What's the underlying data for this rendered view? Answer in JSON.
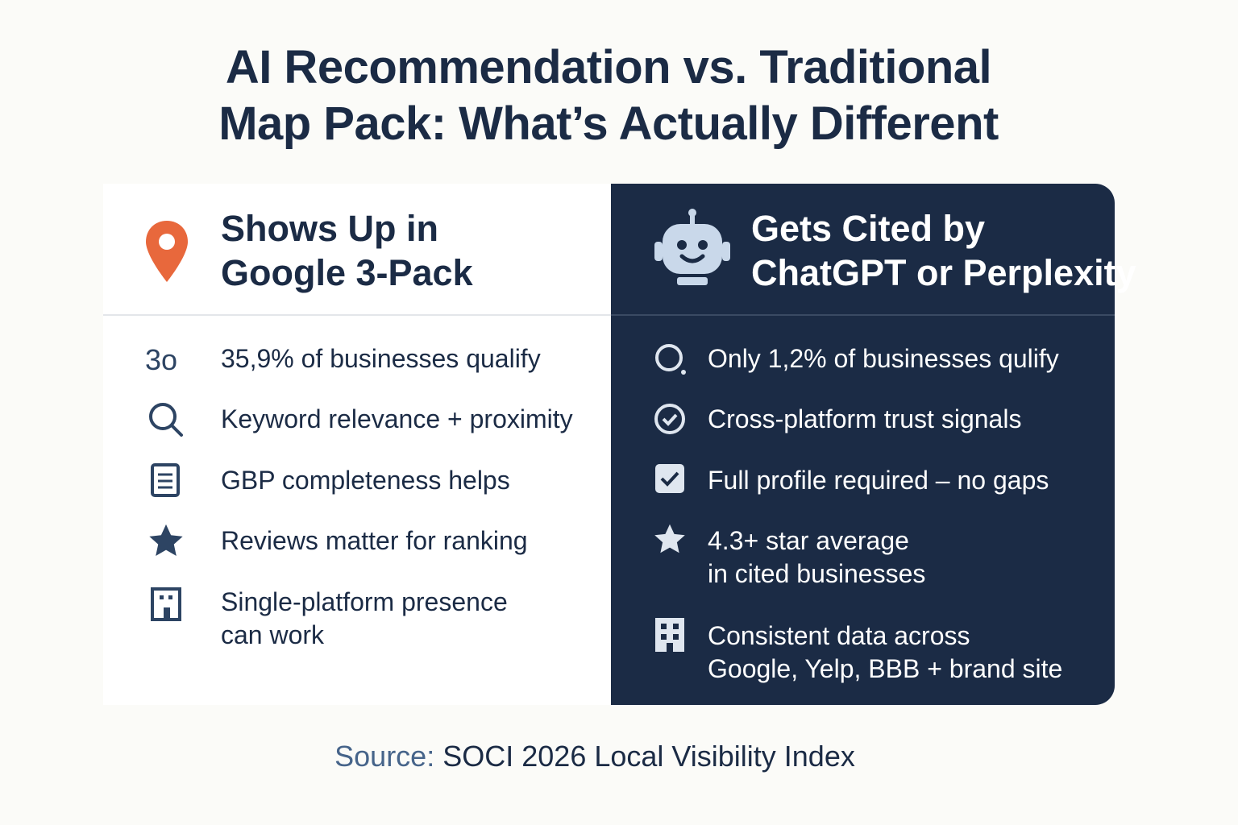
{
  "header": {
    "title": [
      "AI Recommendation vs. Traditional",
      "Map Pack: What’s Actually Different"
    ]
  },
  "left": {
    "heading": [
      "Shows Up in",
      "Google 3-Pack"
    ],
    "icon_text": "3o",
    "items": [
      {
        "lines": [
          "35,9% of businesses qualify"
        ]
      },
      {
        "lines": [
          "Keyword relevance + proximity"
        ]
      },
      {
        "lines": [
          "GBP completeness helps"
        ]
      },
      {
        "lines": [
          "Reviews matter for ranking"
        ]
      },
      {
        "lines": [
          "Single-platform presence",
          "can work"
        ]
      }
    ]
  },
  "right": {
    "heading": [
      "Gets Cited by",
      "ChatGPT or Perplexity"
    ],
    "items": [
      {
        "lines": [
          "Only 1,2% of businesses qulify"
        ]
      },
      {
        "lines": [
          "Cross-platform trust signals"
        ]
      },
      {
        "lines": [
          "Full profile required – no gaps"
        ]
      },
      {
        "lines": [
          "4.3+ star average",
          "in cited businesses"
        ]
      },
      {
        "lines": [
          "Consistent data across",
          "Google, Yelp, BBB + brand site"
        ]
      }
    ]
  },
  "footer": {
    "source_label": "Source:",
    "source_text": "SOCI 2026 Local Visibility Index"
  }
}
